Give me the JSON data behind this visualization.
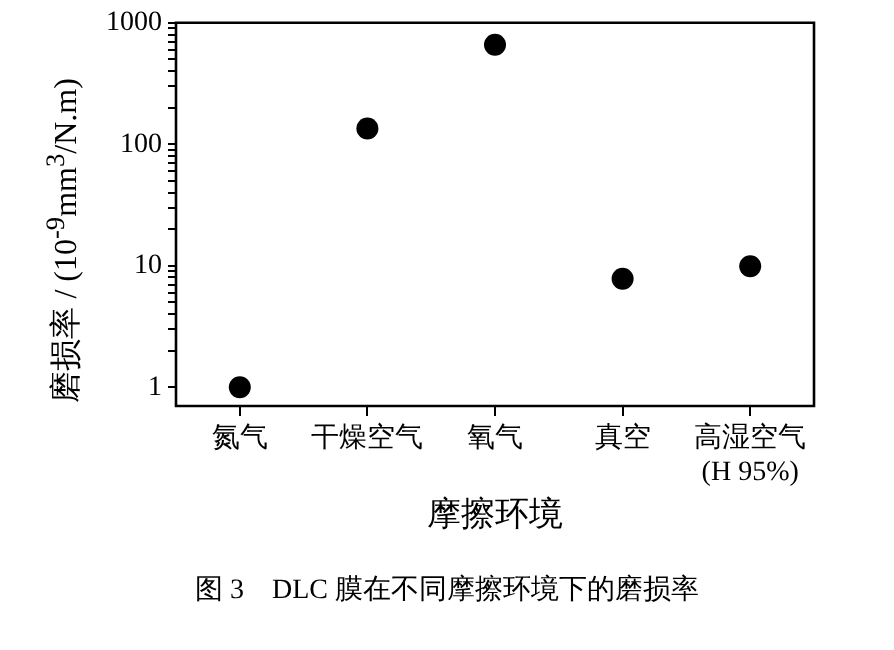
{
  "chart_data": {
    "type": "scatter",
    "title": "图 3　DLC 膜在不同摩擦环境下的磨损率",
    "xlabel": "摩擦环境",
    "ylabel": "磨损率 / (10$^{-9}$mm$^{3}$/N.m)",
    "categories": [
      "氮气",
      "干燥空气",
      "氧气",
      "真空",
      "高湿空气\n(H 95%)"
    ],
    "series": [
      {
        "color": "#000000",
        "values": [
          1,
          135,
          660,
          7.8,
          9.9
        ]
      }
    ],
    "log": "y",
    "ylim": [
      0.72,
      1000
    ],
    "yticks": [
      1,
      {
        "value": 2,
        "label": null
      },
      {
        "value": 3,
        "label": null
      },
      {
        "value": 4,
        "label": null
      },
      {
        "value": 5,
        "label": null
      },
      {
        "value": 6,
        "label": null
      },
      {
        "value": 7,
        "label": null
      },
      {
        "value": 8,
        "label": null
      },
      {
        "value": 9,
        "label": null
      },
      10,
      {
        "value": 20,
        "label": null
      },
      {
        "value": 30,
        "label": null
      },
      {
        "value": 40,
        "label": null
      },
      {
        "value": 50,
        "label": null
      },
      {
        "value": 60,
        "label": null
      },
      {
        "value": 70,
        "label": null
      },
      {
        "value": 80,
        "label": null
      },
      {
        "value": 90,
        "label": null
      },
      100,
      {
        "value": 200,
        "label": null
      },
      {
        "value": 300,
        "label": null
      },
      {
        "value": 400,
        "label": null
      },
      {
        "value": 500,
        "label": null
      },
      {
        "value": 600,
        "label": null
      },
      {
        "value": 700,
        "label": null
      },
      {
        "value": 800,
        "label": null
      },
      {
        "value": 900,
        "label": null
      },
      1000
    ],
    "marker": "circle",
    "grid": false,
    "legend": false
  }
}
